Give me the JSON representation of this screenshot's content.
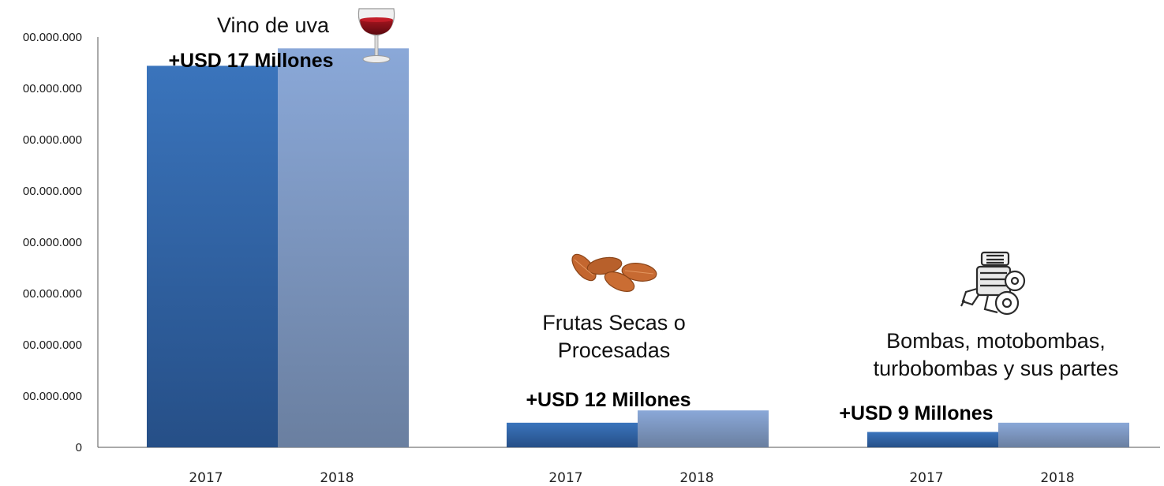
{
  "chart_data": {
    "type": "bar",
    "categories": [
      "Vino de uva",
      "Frutas Secas o Procesadas",
      "Bombas, motobombas, turbobombas y sus partes"
    ],
    "category_label_lines": [
      [
        "Vino de uva"
      ],
      [
        "Frutas Secas o",
        "Procesadas"
      ],
      [
        "Bombas, motobombas,",
        "turbobombas y sus partes"
      ]
    ],
    "series": [
      {
        "name": "2017",
        "values": [
          372,
          24,
          15
        ]
      },
      {
        "name": "2018",
        "values": [
          389,
          36,
          24
        ]
      }
    ],
    "x_tick_labels": [
      [
        "2017",
        "2018"
      ],
      [
        "2017",
        "2018"
      ],
      [
        "2017",
        "2018"
      ]
    ],
    "y_tick_labels": [
      "0",
      "00.000.000",
      "00.000.000",
      "00.000.000",
      "00.000.000",
      "00.000.000",
      "00.000.000",
      "00.000.000",
      "00.000.000"
    ],
    "ylim": [
      0,
      400
    ],
    "y_tick_step": 50,
    "annotations": [
      "+USD 17 Millones",
      "+USD 12 Millones",
      "+USD 9 Millones"
    ],
    "icons": [
      "wine-glass-icon",
      "almonds-icon",
      "engine-icon"
    ],
    "grid": false,
    "colors": {
      "series_2017_top": "#3a74bc",
      "series_2017_bottom": "#264f87",
      "series_2018_top": "#8aa8d8",
      "series_2018_bottom": "#6a7fa0",
      "axis": "#555555"
    }
  }
}
